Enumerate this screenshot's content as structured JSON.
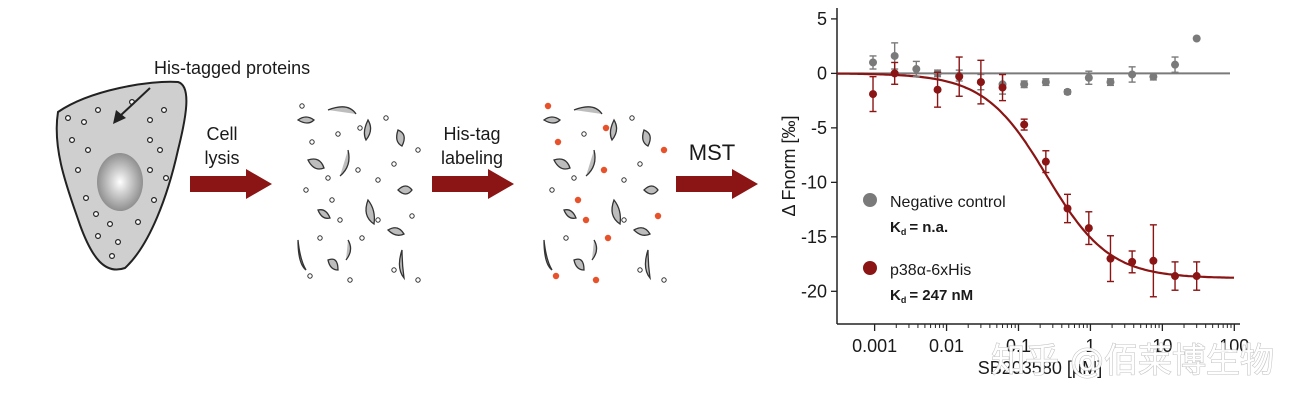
{
  "workflow": {
    "cell_label": "His-tagged proteins",
    "step1_line1": "Cell",
    "step1_line2": "lysis",
    "step2_line1": "His-tag",
    "step2_line2": "labeling",
    "step3": "MST",
    "colors": {
      "arrow": "#8b1414",
      "label_dot": "#e8512a",
      "cell_fill": "#cfcfcf"
    }
  },
  "watermark": "知乎 @佰莱博生物",
  "chart_data": {
    "type": "scatter",
    "xlabel": "SB203580 [µM]",
    "ylabel": "Δ Fnorm [‰]",
    "xscale": "log",
    "xlim": [
      0.0003,
      120
    ],
    "ylim": [
      -23,
      6
    ],
    "xticks": [
      "0.001",
      "0.01",
      "0.1",
      "1",
      "10",
      "100"
    ],
    "yticks": [
      "5",
      "0",
      "-5",
      "-10",
      "-15",
      "-20"
    ],
    "legend_position": "lower-left",
    "series": [
      {
        "name": "Negative control",
        "kd_label": "K",
        "kd_sub": "d",
        "kd_value": "= n.a.",
        "color": "#7a7a7a",
        "x": [
          0.00095,
          0.0019,
          0.0038,
          0.0075,
          0.015,
          0.03,
          0.06,
          0.12,
          0.24,
          0.48,
          0.95,
          1.9,
          3.8,
          7.5,
          15,
          30
        ],
        "y": [
          1.0,
          1.6,
          0.4,
          0.0,
          -0.2,
          -0.8,
          -1.0,
          -1.0,
          -0.8,
          -1.7,
          -0.4,
          -0.8,
          -0.1,
          -0.3,
          0.8,
          3.2
        ],
        "err": [
          0.6,
          1.2,
          0.7,
          0.3,
          0.5,
          0.7,
          0.9,
          0.3,
          0.3,
          0.2,
          0.6,
          0.3,
          0.7,
          0.3,
          0.7,
          0.0
        ]
      },
      {
        "name": "p38α-6xHis",
        "kd_label": "K",
        "kd_sub": "d",
        "kd_value": "= 247 nM",
        "color": "#8b1414",
        "x": [
          0.00095,
          0.0019,
          0.0075,
          0.015,
          0.03,
          0.06,
          0.12,
          0.24,
          0.48,
          0.95,
          1.9,
          3.8,
          7.5,
          15,
          30
        ],
        "y": [
          -1.9,
          0.0,
          -1.5,
          -0.3,
          -0.8,
          -1.3,
          -4.7,
          -8.1,
          -12.4,
          -14.2,
          -17.0,
          -17.3,
          -17.2,
          -18.6,
          -18.6
        ],
        "err": [
          1.6,
          1.0,
          1.6,
          1.8,
          2.0,
          1.2,
          0.5,
          1.0,
          1.3,
          1.5,
          2.1,
          1.0,
          3.3,
          1.3,
          1.3
        ]
      }
    ],
    "fit": {
      "color": "#8b1414",
      "top": 0.0,
      "bottom": -18.8,
      "kd_um": 0.247
    },
    "baseline": {
      "y": 0,
      "color": "#7a7a7a"
    }
  }
}
